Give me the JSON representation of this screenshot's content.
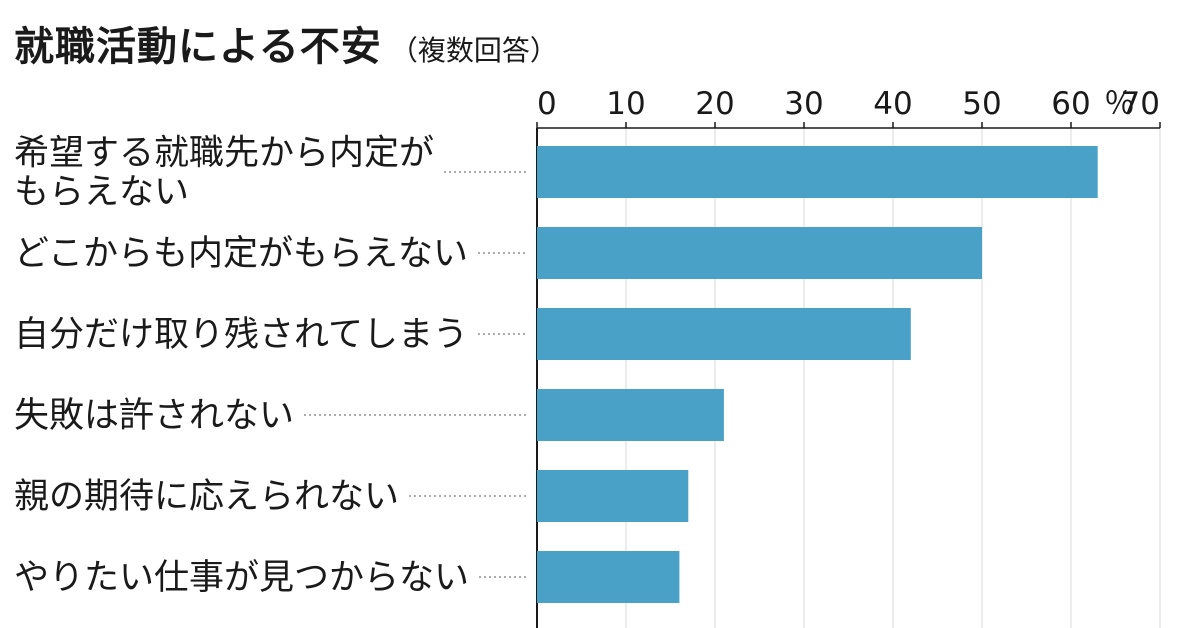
{
  "chart_data": {
    "type": "bar",
    "orientation": "horizontal",
    "title": "就職活動による不安",
    "subtitle": "（複数回答）",
    "unit": "％",
    "xlim": [
      0,
      70
    ],
    "ticks": [
      "0",
      "10",
      "20",
      "30",
      "40",
      "50",
      "60",
      "70"
    ],
    "bar_color": "#4aa1c8",
    "grid": true,
    "categories": [
      [
        "希望する就職先から内定が",
        "もらえない"
      ],
      [
        "どこからも内定がもらえない"
      ],
      [
        "自分だけ取り残されてしまう"
      ],
      [
        "失敗は許されない"
      ],
      [
        "親の期待に応えられない"
      ],
      [
        "やりたい仕事が見つからない"
      ]
    ],
    "values": [
      63,
      50,
      42,
      21,
      17,
      16
    ]
  }
}
